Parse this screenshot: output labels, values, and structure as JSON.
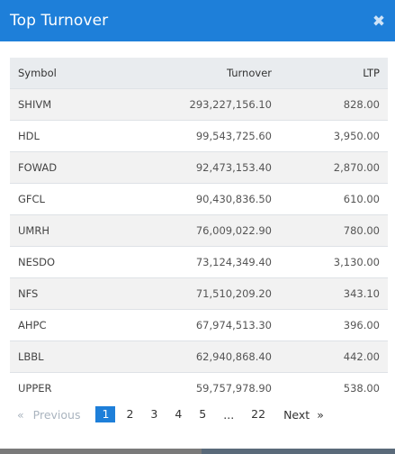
{
  "modal": {
    "title": "Top Turnover",
    "close_icon": "close-icon"
  },
  "table": {
    "headers": {
      "symbol": "Symbol",
      "turnover": "Turnover",
      "ltp": "LTP"
    },
    "rows": [
      {
        "symbol": "SHIVM",
        "turnover": "293,227,156.10",
        "ltp": "828.00"
      },
      {
        "symbol": "HDL",
        "turnover": "99,543,725.60",
        "ltp": "3,950.00"
      },
      {
        "symbol": "FOWAD",
        "turnover": "92,473,153.40",
        "ltp": "2,870.00"
      },
      {
        "symbol": "GFCL",
        "turnover": "90,430,836.50",
        "ltp": "610.00"
      },
      {
        "symbol": "UMRH",
        "turnover": "76,009,022.90",
        "ltp": "780.00"
      },
      {
        "symbol": "NESDO",
        "turnover": "73,124,349.40",
        "ltp": "3,130.00"
      },
      {
        "symbol": "NFS",
        "turnover": "71,510,209.20",
        "ltp": "343.10"
      },
      {
        "symbol": "AHPC",
        "turnover": "67,974,513.30",
        "ltp": "396.00"
      },
      {
        "symbol": "LBBL",
        "turnover": "62,940,868.40",
        "ltp": "442.00"
      },
      {
        "symbol": "UPPER",
        "turnover": "59,757,978.90",
        "ltp": "538.00"
      }
    ]
  },
  "pagination": {
    "prev_arrow": "«",
    "prev_label": "Previous",
    "pages": [
      "1",
      "2",
      "3",
      "4",
      "5"
    ],
    "current": "1",
    "ellipsis": "...",
    "last_page": "22",
    "next_label": "Next",
    "next_arrow": "»"
  },
  "colors": {
    "header_bg": "#1e7fd9",
    "active_page_bg": "#1e7fd9"
  }
}
